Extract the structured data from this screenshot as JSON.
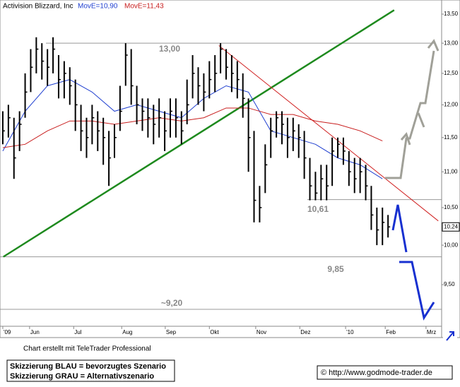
{
  "chart_data": {
    "type": "ohlc",
    "title": "Activision Blizzard, Inc",
    "log_scale": true,
    "xlim": [
      -0.5,
      78.6
    ],
    "ylim": [
      9.0,
      13.75
    ],
    "yticks": [
      {
        "value": 9.5,
        "label": "9,50"
      },
      {
        "value": 10.0,
        "label": "10,00"
      },
      {
        "value": 10.5,
        "label": "10,50"
      },
      {
        "value": 11.0,
        "label": "11,00"
      },
      {
        "value": 11.5,
        "label": "11,50"
      },
      {
        "value": 12.0,
        "label": "12,00"
      },
      {
        "value": 12.5,
        "label": "12,50"
      },
      {
        "value": 13.0,
        "label": "13,00"
      },
      {
        "value": 13.5,
        "label": "13,50"
      }
    ],
    "xticks": [
      {
        "value": 0,
        "label": "'09"
      },
      {
        "value": 4.8,
        "label": "Jun"
      },
      {
        "value": 12.7,
        "label": "Jul"
      },
      {
        "value": 21.3,
        "label": "Aug"
      },
      {
        "value": 29.1,
        "label": "Sep"
      },
      {
        "value": 37,
        "label": "Okt"
      },
      {
        "value": 45.3,
        "label": "Nov"
      },
      {
        "value": 53.2,
        "label": "Dez"
      },
      {
        "value": 61.4,
        "label": "'10"
      },
      {
        "value": 68.5,
        "label": "Feb"
      },
      {
        "value": 75.8,
        "label": "Mrz"
      }
    ],
    "bar_color": "#000000",
    "close": [
      11.6,
      11.8,
      11.2,
      11.7,
      12.2,
      12.6,
      12.9,
      12.7,
      12.6,
      12.9,
      12.4,
      12.5,
      12.3,
      12.0,
      11.6,
      11.5,
      11.8,
      11.6,
      11.5,
      11.2,
      11.5,
      11.9,
      12.8,
      12.3,
      12.0,
      11.9,
      11.8,
      11.7,
      11.8,
      11.6,
      11.9,
      11.8,
      11.6,
      12.0,
      12.5,
      12.3,
      12.2,
      12.4,
      12.5,
      12.9,
      12.6,
      12.5,
      12.4,
      12.1,
      11.5,
      10.6,
      10.5,
      11.1,
      11.6,
      11.8,
      11.7,
      11.5,
      11.6,
      11.5,
      11.2,
      10.8,
      10.7,
      10.9,
      10.8,
      11.3,
      11.4,
      11.3,
      11.0,
      10.9,
      11.0,
      10.8,
      10.4,
      10.2,
      10.3,
      10.24
    ],
    "high": [
      11.9,
      12.0,
      11.8,
      11.9,
      12.5,
      12.9,
      13.1,
      13.0,
      12.9,
      13.1,
      12.8,
      12.7,
      12.6,
      12.4,
      12.0,
      11.8,
      12.0,
      11.9,
      11.8,
      11.6,
      11.7,
      12.3,
      13.0,
      12.9,
      12.3,
      12.1,
      12.1,
      12.0,
      12.1,
      11.9,
      12.1,
      12.1,
      11.9,
      12.4,
      12.8,
      12.6,
      12.5,
      12.7,
      12.8,
      13.0,
      12.9,
      12.8,
      12.7,
      12.5,
      12.1,
      11.6,
      10.8,
      11.4,
      11.8,
      11.9,
      11.9,
      11.8,
      11.8,
      11.7,
      11.6,
      11.2,
      11.0,
      11.1,
      11.1,
      11.5,
      11.5,
      11.5,
      11.3,
      11.2,
      11.2,
      11.1,
      10.8,
      10.5,
      10.5,
      10.4
    ],
    "low": [
      11.4,
      11.5,
      10.9,
      11.3,
      11.8,
      12.2,
      12.5,
      12.4,
      12.3,
      12.5,
      12.1,
      12.1,
      12.0,
      11.6,
      11.3,
      11.2,
      11.4,
      11.3,
      11.1,
      10.8,
      11.2,
      11.6,
      12.3,
      12.0,
      11.7,
      11.6,
      11.5,
      11.4,
      11.5,
      11.3,
      11.5,
      11.5,
      11.4,
      11.7,
      12.1,
      12.0,
      11.9,
      12.1,
      12.2,
      12.5,
      12.4,
      12.2,
      12.1,
      11.8,
      11.0,
      10.3,
      10.3,
      10.7,
      11.2,
      11.5,
      11.4,
      11.2,
      11.3,
      11.2,
      10.9,
      10.6,
      10.6,
      10.6,
      10.6,
      10.8,
      11.2,
      11.1,
      10.8,
      10.7,
      10.7,
      10.6,
      10.2,
      10.0,
      10.0,
      10.1
    ],
    "series": [
      {
        "name": "MovE=10,90",
        "color": "#1f3fd0",
        "x": [
          0,
          4,
          8,
          12,
          16,
          20,
          24,
          28,
          32,
          36,
          40,
          44,
          48,
          52,
          56,
          60,
          64,
          68
        ],
        "values": [
          11.3,
          11.9,
          12.3,
          12.4,
          12.2,
          11.9,
          12.0,
          11.9,
          11.8,
          12.1,
          12.3,
          12.2,
          11.6,
          11.5,
          11.4,
          11.2,
          11.1,
          10.9
        ]
      },
      {
        "name": "MovE=11,43",
        "color": "#c81e1e",
        "x": [
          0,
          4,
          8,
          12,
          16,
          20,
          24,
          28,
          32,
          36,
          40,
          44,
          48,
          52,
          56,
          60,
          64,
          68
        ],
        "values": [
          11.35,
          11.4,
          11.6,
          11.75,
          11.75,
          11.7,
          11.75,
          11.8,
          11.75,
          11.8,
          11.95,
          11.95,
          11.85,
          11.85,
          11.75,
          11.7,
          11.6,
          11.45
        ]
      }
    ],
    "trendlines": [
      {
        "color": "#1e8a1e",
        "x": [
          0.1,
          70.1
        ],
        "values": [
          9.85,
          13.57
        ]
      },
      {
        "color": "#d02020",
        "x": [
          38.7,
          78.0
        ],
        "values": [
          12.96,
          10.32
        ]
      }
    ],
    "levels": [
      {
        "value": 13.0,
        "label": "13,00"
      },
      {
        "value": 10.61,
        "label": "10,61"
      },
      {
        "value": 9.85,
        "label": "9,85"
      },
      {
        "value": 9.2,
        "label": "~9,20"
      }
    ],
    "last_price": {
      "value": 10.24,
      "label": "10,24"
    },
    "credit": "Chart erstellt mit TeleTrader Professional",
    "notes": [
      "Skizzierung BLAU = bevorzugtes Szenario",
      "Skizzierung GRAU = Alternativszenario"
    ],
    "source": "© http://www.godmode-trader.de"
  }
}
